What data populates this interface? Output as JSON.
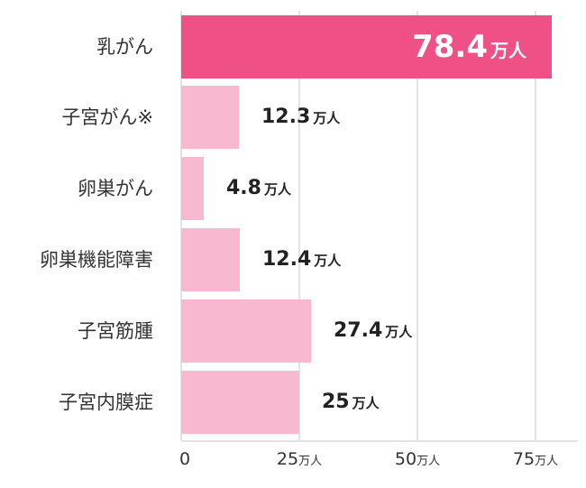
{
  "chart_data": {
    "type": "bar",
    "orientation": "horizontal",
    "title": "",
    "xlabel": "",
    "ylabel": "",
    "unit": "万人",
    "categories": [
      "乳がん",
      "子宮がん※",
      "卵巣がん",
      "卵巣機能障害",
      "子宮筋腫",
      "子宮内膜症"
    ],
    "values": [
      78.4,
      12.3,
      4.8,
      12.4,
      27.4,
      25
    ],
    "value_labels": [
      "78.4",
      "12.3",
      "4.8",
      "12.4",
      "27.4",
      "25"
    ],
    "xlim": [
      0,
      80
    ],
    "x_ticks": [
      {
        "value": "0",
        "unit": ""
      },
      {
        "value": "25",
        "unit": "万人"
      },
      {
        "value": "50",
        "unit": "万人"
      },
      {
        "value": "75",
        "unit": "万人"
      }
    ],
    "grid": true,
    "legend": null,
    "colors": {
      "highlight": "#ef5085",
      "normal": "#f8b8cf",
      "grid": "#e3e3e3",
      "text": "#333333"
    }
  }
}
